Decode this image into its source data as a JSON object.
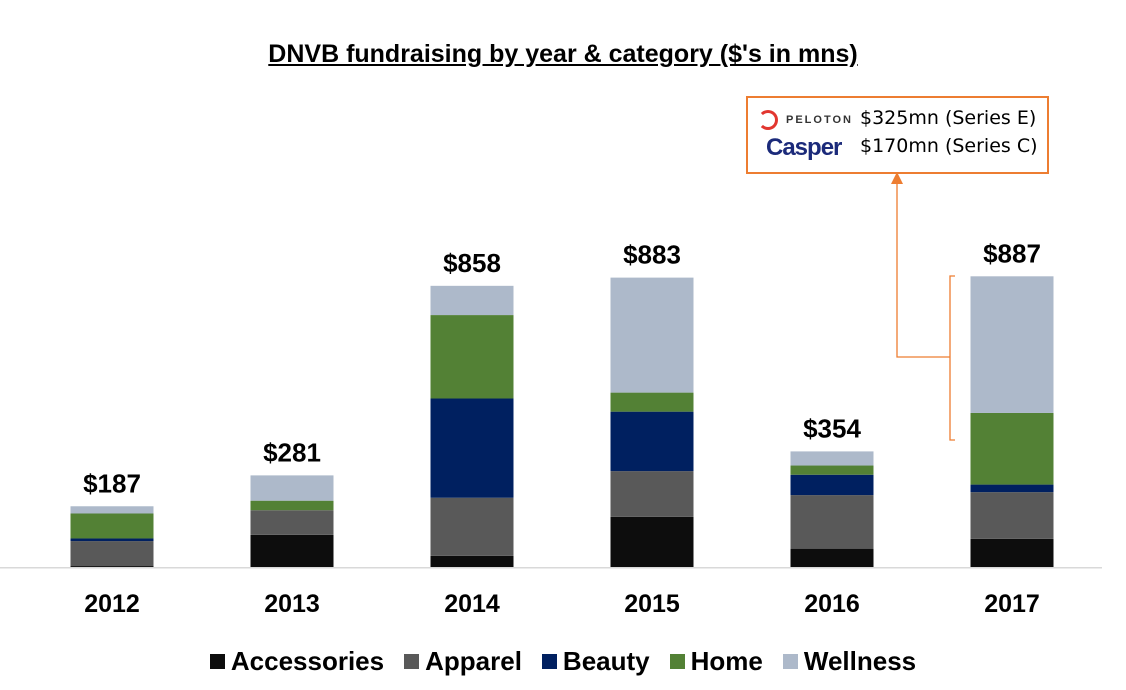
{
  "chart_data": {
    "type": "bar",
    "stacked": true,
    "title": "DNVB fundraising by year & category ($'s in mns)",
    "categories": [
      "2012",
      "2013",
      "2014",
      "2015",
      "2016",
      "2017"
    ],
    "totals": [
      "$187",
      "$281",
      "$858",
      "$883",
      "$354",
      "$887"
    ],
    "series": [
      {
        "name": "Accessories",
        "color": "#0d0d0d",
        "values": [
          5,
          100,
          36,
          155,
          58,
          88
        ]
      },
      {
        "name": "Apparel",
        "color": "#595959",
        "values": [
          76,
          75,
          177,
          139,
          163,
          142
        ]
      },
      {
        "name": "Beauty",
        "color": "#002060",
        "values": [
          8,
          0,
          302,
          181,
          62,
          23
        ]
      },
      {
        "name": "Home",
        "color": "#538135",
        "values": [
          76,
          29,
          254,
          58,
          28,
          218
        ]
      },
      {
        "name": "Wellness",
        "color": "#adb9ca",
        "values": [
          22,
          77,
          89,
          350,
          43,
          416
        ]
      }
    ],
    "ylim": [
      0,
      887
    ],
    "grid": false,
    "legend_position": "bottom"
  },
  "callout": {
    "border_color": "#ed7d31",
    "rows": [
      {
        "logo": "PELOTON",
        "text": "$325mn (Series E)"
      },
      {
        "logo": "Casper",
        "text": "$170mn (Series C)"
      }
    ],
    "points_to": "2017 Home and Wellness"
  }
}
